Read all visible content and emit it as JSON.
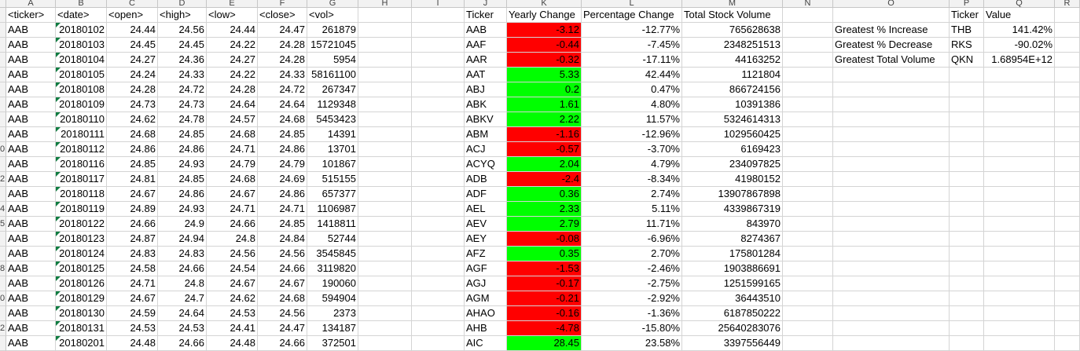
{
  "sheet": {
    "column_letters": [
      "A",
      "B",
      "C",
      "D",
      "E",
      "F",
      "G",
      "H",
      "I",
      "J",
      "K",
      "L",
      "M",
      "N",
      "O",
      "P",
      "Q",
      "R"
    ],
    "row_numbers": [
      "",
      "",
      "",
      "",
      "",
      "",
      "",
      "",
      "",
      "0",
      "",
      "2",
      "",
      "4",
      "5",
      "",
      "",
      "8",
      "",
      "0",
      "",
      "2",
      ""
    ],
    "stock_table": {
      "headers": [
        "<ticker>",
        "<date>",
        "<open>",
        "<high>",
        "<low>",
        "<close>",
        "<vol>"
      ],
      "rows": [
        [
          "AAB",
          "20180102",
          "24.44",
          "24.56",
          "24.44",
          "24.47",
          "261879"
        ],
        [
          "AAB",
          "20180103",
          "24.45",
          "24.45",
          "24.22",
          "24.28",
          "15721045"
        ],
        [
          "AAB",
          "20180104",
          "24.27",
          "24.36",
          "24.27",
          "24.28",
          "5954"
        ],
        [
          "AAB",
          "20180105",
          "24.24",
          "24.33",
          "24.22",
          "24.33",
          "58161100"
        ],
        [
          "AAB",
          "20180108",
          "24.28",
          "24.72",
          "24.28",
          "24.72",
          "267347"
        ],
        [
          "AAB",
          "20180109",
          "24.73",
          "24.73",
          "24.64",
          "24.64",
          "1129348"
        ],
        [
          "AAB",
          "20180110",
          "24.62",
          "24.78",
          "24.57",
          "24.68",
          "5453423"
        ],
        [
          "AAB",
          "20180111",
          "24.68",
          "24.85",
          "24.68",
          "24.85",
          "14391"
        ],
        [
          "AAB",
          "20180112",
          "24.86",
          "24.86",
          "24.71",
          "24.86",
          "13701"
        ],
        [
          "AAB",
          "20180116",
          "24.85",
          "24.93",
          "24.79",
          "24.79",
          "101867"
        ],
        [
          "AAB",
          "20180117",
          "24.81",
          "24.85",
          "24.68",
          "24.69",
          "515155"
        ],
        [
          "AAB",
          "20180118",
          "24.67",
          "24.86",
          "24.67",
          "24.86",
          "657377"
        ],
        [
          "AAB",
          "20180119",
          "24.89",
          "24.93",
          "24.71",
          "24.71",
          "1106987"
        ],
        [
          "AAB",
          "20180122",
          "24.66",
          "24.9",
          "24.66",
          "24.85",
          "1418811"
        ],
        [
          "AAB",
          "20180123",
          "24.87",
          "24.94",
          "24.8",
          "24.84",
          "52744"
        ],
        [
          "AAB",
          "20180124",
          "24.83",
          "24.83",
          "24.56",
          "24.56",
          "3545845"
        ],
        [
          "AAB",
          "20180125",
          "24.58",
          "24.66",
          "24.54",
          "24.66",
          "3119820"
        ],
        [
          "AAB",
          "20180126",
          "24.71",
          "24.8",
          "24.67",
          "24.67",
          "190060"
        ],
        [
          "AAB",
          "20180129",
          "24.67",
          "24.7",
          "24.62",
          "24.68",
          "594904"
        ],
        [
          "AAB",
          "20180130",
          "24.59",
          "24.64",
          "24.53",
          "24.56",
          "2373"
        ],
        [
          "AAB",
          "20180131",
          "24.53",
          "24.53",
          "24.41",
          "24.47",
          "134187"
        ],
        [
          "AAB",
          "20180201",
          "24.48",
          "24.66",
          "24.48",
          "24.66",
          "372501"
        ]
      ]
    },
    "summary_table": {
      "headers": [
        "Ticker",
        "Yearly Change",
        "Percentage Change",
        "Total Stock Volume"
      ],
      "rows": [
        [
          "AAB",
          "-3.12",
          "-12.77%",
          "765628638"
        ],
        [
          "AAF",
          "-0.44",
          "-7.45%",
          "2348251513"
        ],
        [
          "AAR",
          "-0.32",
          "-17.11%",
          "44163252"
        ],
        [
          "AAT",
          "5.33",
          "42.44%",
          "1121804"
        ],
        [
          "ABJ",
          "0.2",
          "0.47%",
          "866724156"
        ],
        [
          "ABK",
          "1.61",
          "4.80%",
          "10391386"
        ],
        [
          "ABKV",
          "2.22",
          "11.57%",
          "5324614313"
        ],
        [
          "ABM",
          "-1.16",
          "-12.96%",
          "1029560425"
        ],
        [
          "ACJ",
          "-0.57",
          "-3.70%",
          "6169423"
        ],
        [
          "ACYQ",
          "2.04",
          "4.79%",
          "234097825"
        ],
        [
          "ADB",
          "-2.4",
          "-8.34%",
          "41980152"
        ],
        [
          "ADF",
          "0.36",
          "2.74%",
          "13907867898"
        ],
        [
          "AEL",
          "2.33",
          "5.11%",
          "4339867319"
        ],
        [
          "AEV",
          "2.79",
          "11.71%",
          "843970"
        ],
        [
          "AEY",
          "-0.08",
          "-6.96%",
          "8274367"
        ],
        [
          "AFZ",
          "0.35",
          "2.70%",
          "175801284"
        ],
        [
          "AGF",
          "-1.53",
          "-2.46%",
          "1903886691"
        ],
        [
          "AGJ",
          "-0.17",
          "-2.75%",
          "1251599165"
        ],
        [
          "AGM",
          "-0.21",
          "-2.92%",
          "36443510"
        ],
        [
          "AHAO",
          "-0.16",
          "-1.36%",
          "6187850222"
        ],
        [
          "AHB",
          "-4.78",
          "-15.80%",
          "25640283076"
        ],
        [
          "AIC",
          "28.45",
          "23.58%",
          "3397556449"
        ]
      ]
    },
    "greatest_table": {
      "headers": [
        "",
        "Ticker",
        "Value"
      ],
      "rows": [
        [
          "Greatest % Increase",
          "THB",
          "141.42%"
        ],
        [
          "Greatest % Decrease",
          "RKS",
          "-90.02%"
        ],
        [
          "Greatest Total Volume",
          "QKN",
          "1.68954E+12"
        ]
      ]
    },
    "colors": {
      "positive": "#00ff00",
      "negative": "#ff0000",
      "grid": "#d4d4d4",
      "header_bg": "#f2f2f2"
    }
  }
}
